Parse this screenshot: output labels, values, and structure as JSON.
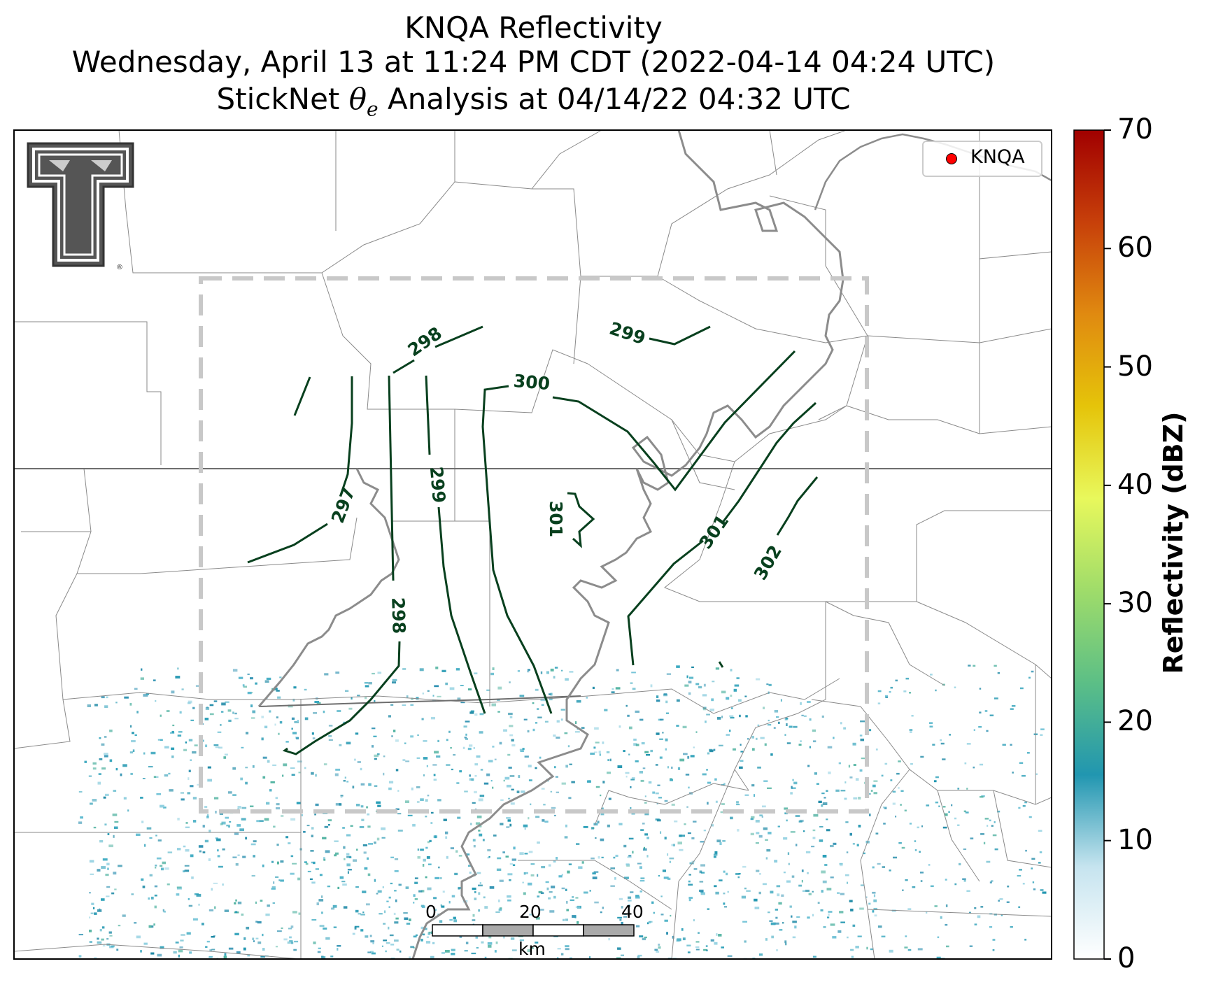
{
  "title": {
    "line1": "KNQA Reflectivity",
    "line2": "Wednesday, April 13 at 11:24 PM CDT (2022-04-14 04:24 UTC)",
    "line3": "StickNet θe Analysis at 04/14/22 04:32 UTC"
  },
  "legend": {
    "label": "KNQA",
    "marker_color": "#ff0000"
  },
  "colorbar": {
    "label": "Reflectivity (dBZ)",
    "ticks": [
      "0",
      "10",
      "20",
      "30",
      "40",
      "50",
      "60",
      "70"
    ],
    "min": 0,
    "max": 70,
    "colors": [
      "#ffffff",
      "#c6e4ef",
      "#2196b0",
      "#5cbf86",
      "#9fdc6a",
      "#e8f85c",
      "#e5c40a",
      "#e08a10",
      "#c7400a",
      "#a10000"
    ]
  },
  "contours": {
    "labels": [
      "297",
      "298",
      "298",
      "299",
      "299",
      "300",
      "301",
      "301",
      "302"
    ],
    "color": "#08401e"
  },
  "scale_bar": {
    "ticks": [
      "0",
      "20",
      "40"
    ],
    "unit": "km"
  },
  "logo": {
    "name": "Texas Tech double-T logo"
  }
}
